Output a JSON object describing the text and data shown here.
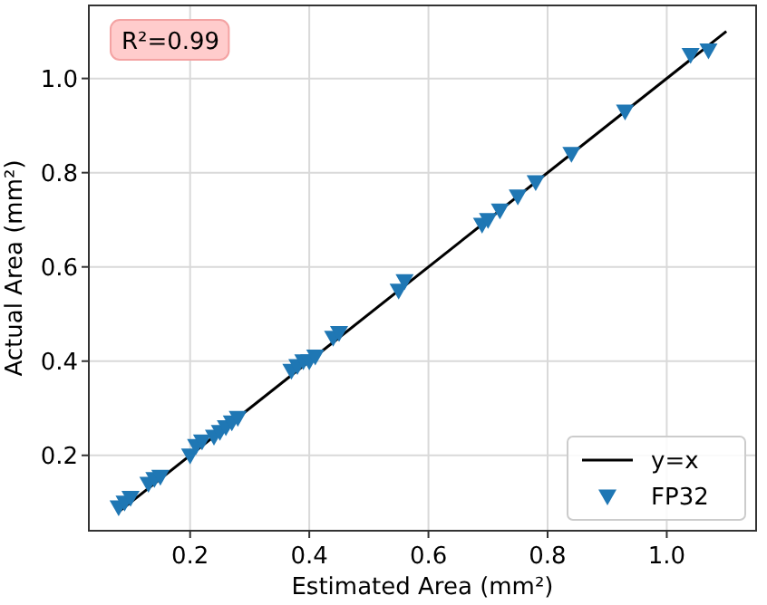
{
  "chart_data": {
    "type": "scatter",
    "xlabel": "Estimated Area (mm²)",
    "ylabel": "Actual Area (mm²)",
    "xlim": [
      0.03,
      1.15
    ],
    "ylim": [
      0.04,
      1.155
    ],
    "xticks": [
      0.2,
      0.4,
      0.6,
      0.8,
      {
        "value": 1,
        "label": "1.0"
      }
    ],
    "yticks": [
      0.2,
      0.4,
      0.6,
      0.8,
      {
        "value": 1,
        "label": "1.0"
      }
    ],
    "grid": true,
    "legend": "bottom right",
    "annotations": [
      "R²=0.99"
    ],
    "series": [
      {
        "name": "y=x",
        "type": "line",
        "color": "#000000",
        "line_style": "solid",
        "x": [
          0.08,
          1.1
        ],
        "values": [
          0.08,
          1.1
        ]
      },
      {
        "name": "FP32",
        "color": "#1f77b4",
        "marker": "triangle",
        "x": [
          0.08,
          0.09,
          0.1,
          0.13,
          0.14,
          0.15,
          0.2,
          0.21,
          0.22,
          0.24,
          0.25,
          0.26,
          0.27,
          0.28,
          0.37,
          0.38,
          0.39,
          0.4,
          0.41,
          0.44,
          0.45,
          0.55,
          0.56,
          0.69,
          0.7,
          0.72,
          0.75,
          0.78,
          0.84,
          0.93,
          1.04,
          1.07
        ],
        "values": [
          0.09,
          0.1,
          0.11,
          0.14,
          0.15,
          0.155,
          0.2,
          0.22,
          0.23,
          0.24,
          0.25,
          0.26,
          0.27,
          0.28,
          0.38,
          0.39,
          0.4,
          0.4,
          0.41,
          0.45,
          0.46,
          0.55,
          0.57,
          0.69,
          0.7,
          0.72,
          0.75,
          0.78,
          0.84,
          0.93,
          1.05,
          1.06
        ]
      }
    ]
  }
}
